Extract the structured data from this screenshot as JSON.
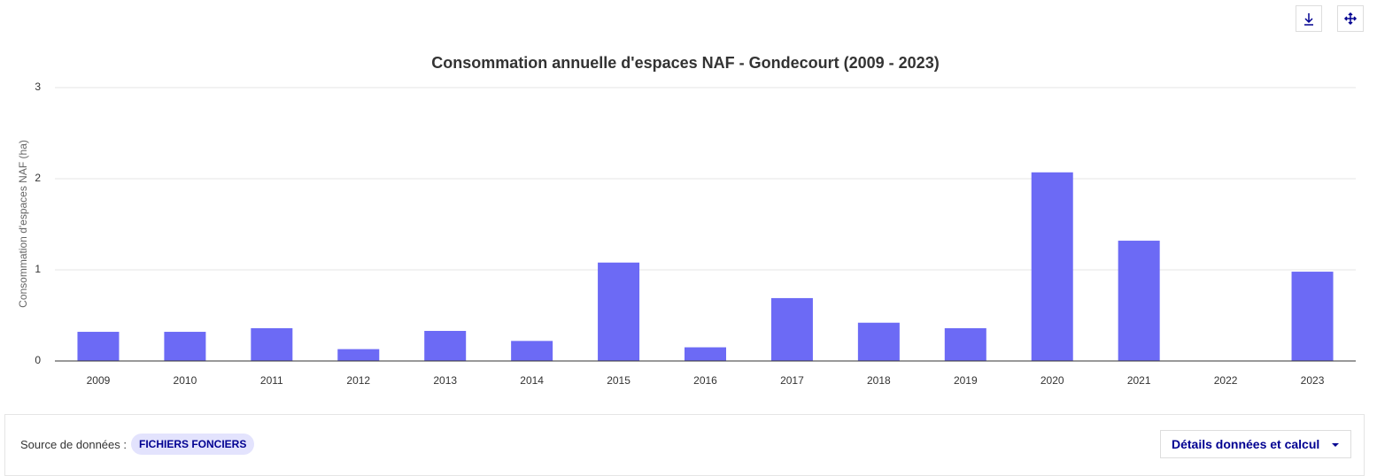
{
  "chart_data": {
    "type": "bar",
    "title": "Consommation annuelle d'espaces NAF - Gondecourt (2009 - 2023)",
    "y_label": "Consommation d'espaces NAF (ha)",
    "categories": [
      "2009",
      "2010",
      "2011",
      "2012",
      "2013",
      "2014",
      "2015",
      "2016",
      "2017",
      "2018",
      "2019",
      "2020",
      "2021",
      "2022",
      "2023"
    ],
    "values": [
      0.32,
      0.32,
      0.36,
      0.13,
      0.33,
      0.22,
      1.08,
      0.15,
      0.69,
      0.42,
      0.36,
      2.07,
      1.32,
      0,
      0.98
    ],
    "color": "#6c6af5",
    "ylim": [
      0,
      3
    ],
    "yticks": [
      0,
      1,
      2,
      3
    ],
    "grid": true
  },
  "footer": {
    "source_label": "Source de données :",
    "source_badge": "FICHIERS FONCIERS",
    "details_button": "Détails données et calcul"
  }
}
